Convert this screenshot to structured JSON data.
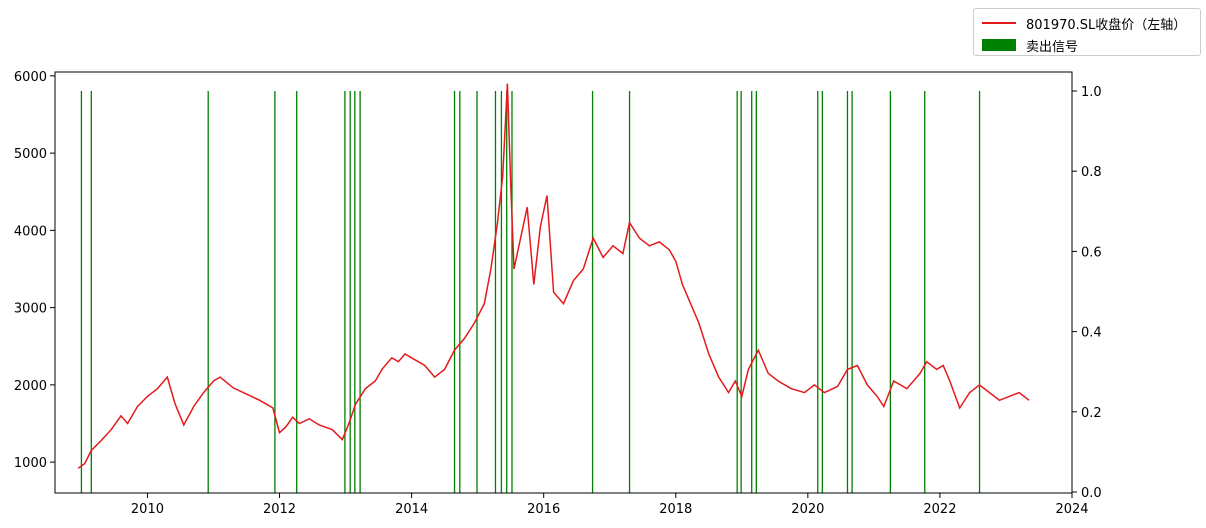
{
  "chart_data": {
    "type": "line",
    "x_axis": {
      "ticks": [
        "2010",
        "2012",
        "2014",
        "2016",
        "2018",
        "2020",
        "2022",
        "2024"
      ],
      "range": [
        2008.6,
        2024.0
      ]
    },
    "y_left": {
      "ticks": [
        "1000",
        "2000",
        "3000",
        "4000",
        "5000",
        "6000"
      ],
      "range": [
        600,
        6050
      ]
    },
    "y_right": {
      "ticks": [
        "0.0",
        "0.2",
        "0.4",
        "0.6",
        "0.8",
        "1.0"
      ],
      "range": [
        0,
        1.0
      ]
    },
    "series": [
      {
        "name": "801970.SL收盘价（左轴）",
        "color": "#e41a1c",
        "points": [
          [
            2008.95,
            920
          ],
          [
            2009.05,
            980
          ],
          [
            2009.15,
            1150
          ],
          [
            2009.3,
            1280
          ],
          [
            2009.45,
            1420
          ],
          [
            2009.6,
            1600
          ],
          [
            2009.7,
            1500
          ],
          [
            2009.85,
            1720
          ],
          [
            2010.0,
            1850
          ],
          [
            2010.15,
            1950
          ],
          [
            2010.3,
            2100
          ],
          [
            2010.42,
            1750
          ],
          [
            2010.55,
            1480
          ],
          [
            2010.7,
            1720
          ],
          [
            2010.85,
            1900
          ],
          [
            2011.0,
            2050
          ],
          [
            2011.1,
            2100
          ],
          [
            2011.3,
            1960
          ],
          [
            2011.5,
            1880
          ],
          [
            2011.7,
            1800
          ],
          [
            2011.9,
            1700
          ],
          [
            2012.0,
            1380
          ],
          [
            2012.1,
            1460
          ],
          [
            2012.2,
            1580
          ],
          [
            2012.3,
            1500
          ],
          [
            2012.45,
            1560
          ],
          [
            2012.6,
            1480
          ],
          [
            2012.8,
            1420
          ],
          [
            2012.95,
            1290
          ],
          [
            2013.05,
            1500
          ],
          [
            2013.15,
            1750
          ],
          [
            2013.3,
            1950
          ],
          [
            2013.45,
            2050
          ],
          [
            2013.55,
            2200
          ],
          [
            2013.7,
            2350
          ],
          [
            2013.8,
            2300
          ],
          [
            2013.9,
            2400
          ],
          [
            2014.0,
            2350
          ],
          [
            2014.2,
            2250
          ],
          [
            2014.35,
            2100
          ],
          [
            2014.5,
            2200
          ],
          [
            2014.65,
            2450
          ],
          [
            2014.8,
            2600
          ],
          [
            2014.95,
            2800
          ],
          [
            2015.1,
            3050
          ],
          [
            2015.2,
            3500
          ],
          [
            2015.3,
            4100
          ],
          [
            2015.38,
            4700
          ],
          [
            2015.45,
            5900
          ],
          [
            2015.5,
            4600
          ],
          [
            2015.55,
            3500
          ],
          [
            2015.65,
            3900
          ],
          [
            2015.75,
            4300
          ],
          [
            2015.85,
            3300
          ],
          [
            2015.95,
            4050
          ],
          [
            2016.05,
            4450
          ],
          [
            2016.15,
            3200
          ],
          [
            2016.3,
            3050
          ],
          [
            2016.45,
            3350
          ],
          [
            2016.6,
            3500
          ],
          [
            2016.75,
            3900
          ],
          [
            2016.9,
            3650
          ],
          [
            2017.05,
            3800
          ],
          [
            2017.2,
            3700
          ],
          [
            2017.3,
            4100
          ],
          [
            2017.45,
            3900
          ],
          [
            2017.6,
            3800
          ],
          [
            2017.75,
            3850
          ],
          [
            2017.9,
            3750
          ],
          [
            2018.0,
            3600
          ],
          [
            2018.1,
            3300
          ],
          [
            2018.2,
            3100
          ],
          [
            2018.35,
            2800
          ],
          [
            2018.5,
            2400
          ],
          [
            2018.65,
            2100
          ],
          [
            2018.8,
            1900
          ],
          [
            2018.9,
            2050
          ],
          [
            2019.0,
            1850
          ],
          [
            2019.1,
            2200
          ],
          [
            2019.25,
            2450
          ],
          [
            2019.4,
            2150
          ],
          [
            2019.55,
            2050
          ],
          [
            2019.75,
            1950
          ],
          [
            2019.95,
            1900
          ],
          [
            2020.1,
            2000
          ],
          [
            2020.25,
            1900
          ],
          [
            2020.45,
            1980
          ],
          [
            2020.6,
            2200
          ],
          [
            2020.75,
            2250
          ],
          [
            2020.9,
            2000
          ],
          [
            2021.05,
            1850
          ],
          [
            2021.15,
            1720
          ],
          [
            2021.3,
            2050
          ],
          [
            2021.5,
            1950
          ],
          [
            2021.7,
            2150
          ],
          [
            2021.8,
            2300
          ],
          [
            2021.95,
            2200
          ],
          [
            2022.05,
            2250
          ],
          [
            2022.15,
            2050
          ],
          [
            2022.3,
            1700
          ],
          [
            2022.45,
            1900
          ],
          [
            2022.6,
            2000
          ],
          [
            2022.75,
            1900
          ],
          [
            2022.9,
            1800
          ],
          [
            2023.05,
            1850
          ],
          [
            2023.2,
            1900
          ],
          [
            2023.35,
            1800
          ]
        ]
      },
      {
        "name": "卖出信号",
        "color": "#008000",
        "signal_dates": [
          2009.0,
          2009.15,
          2010.92,
          2011.93,
          2012.26,
          2012.99,
          2013.07,
          2013.14,
          2013.22,
          2014.65,
          2014.73,
          2014.99,
          2015.27,
          2015.36,
          2015.44,
          2015.52,
          2016.74,
          2017.3,
          2018.93,
          2018.99,
          2019.15,
          2019.22,
          2020.15,
          2020.22,
          2020.6,
          2020.67,
          2021.25,
          2021.77,
          2022.6
        ],
        "signal_value": 1.0
      }
    ]
  }
}
